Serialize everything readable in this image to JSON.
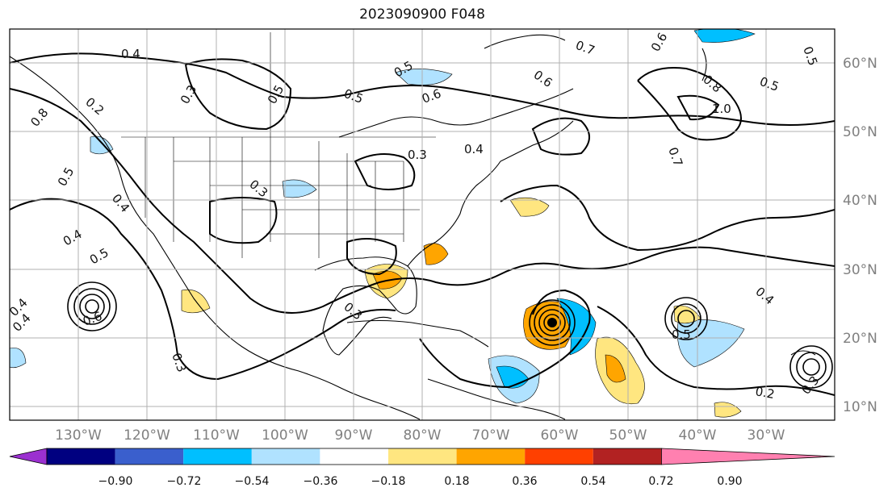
{
  "title": "2023090900 F048",
  "lat_labels": [
    "60°N",
    "50°N",
    "40°N",
    "30°N",
    "20°N",
    "10°N"
  ],
  "lon_labels": [
    "130°W",
    "120°W",
    "110°W",
    "100°W",
    "90°W",
    "80°W",
    "70°W",
    "60°W",
    "50°W",
    "40°W",
    "30°W"
  ],
  "colorbar": {
    "colors": [
      "#9b30d0",
      "#000080",
      "#3a5fcd",
      "#00bfff",
      "#b0e2ff",
      "#ffffff",
      "#ffe680",
      "#ffa500",
      "#ff4000",
      "#b22222",
      "#ff80b0"
    ],
    "ticks": [
      "−0.90",
      "−0.72",
      "−0.54",
      "−0.36",
      "−0.18",
      "0.18",
      "0.36",
      "0.54",
      "0.72",
      "0.90"
    ]
  },
  "contour_labels": [
    "0.4",
    "0.2",
    "0.5",
    "0.6",
    "0.7",
    "0.6",
    "0.5",
    "0.8",
    "1.0",
    "0.5",
    "0.6",
    "0.5",
    "0.3",
    "0.4",
    "0.3",
    "0.8",
    "0.5",
    "0.4",
    "0.5",
    "0.4",
    "0.6",
    "0.3",
    "0.3",
    "0.4",
    "0.5",
    "0.4",
    "0.2",
    "0.3",
    "0.4",
    "0.7",
    "0.5",
    "0.3"
  ],
  "colors": {
    "grid": "#b0b0b0",
    "contour": "#000000",
    "border": "#000000"
  }
}
